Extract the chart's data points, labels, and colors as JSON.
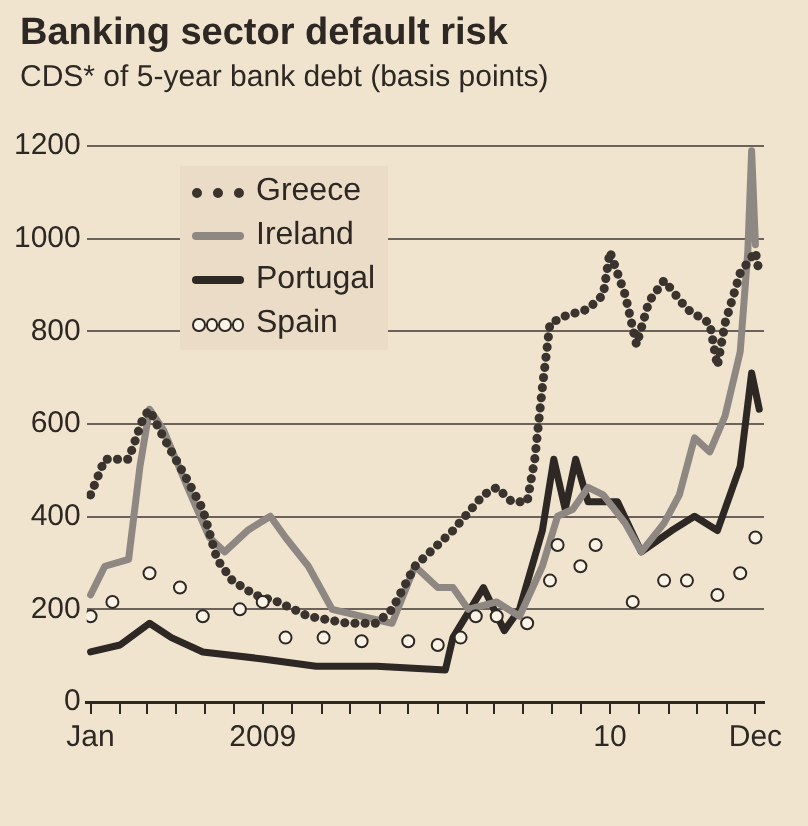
{
  "chart_data": {
    "type": "line",
    "title": "Banking sector default risk",
    "subtitle": "CDS* of 5-year bank debt (basis points)",
    "xlim": [
      "2008-12-28",
      "2010-12-10"
    ],
    "xticks": [
      {
        "value": "2009-01-01",
        "label": "Jan"
      },
      {
        "value": "2009-02-01",
        "label": null
      },
      {
        "value": "2009-03-01",
        "label": null
      },
      {
        "value": "2009-04-01",
        "label": null
      },
      {
        "value": "2009-05-01",
        "label": null
      },
      {
        "value": "2009-06-01",
        "label": null
      },
      {
        "value": "2009-07-01",
        "label": "2009"
      },
      {
        "value": "2009-08-01",
        "label": null
      },
      {
        "value": "2009-09-01",
        "label": null
      },
      {
        "value": "2009-10-01",
        "label": null
      },
      {
        "value": "2009-11-01",
        "label": null
      },
      {
        "value": "2009-12-01",
        "label": null
      },
      {
        "value": "2010-01-01",
        "label": null
      },
      {
        "value": "2010-02-01",
        "label": null
      },
      {
        "value": "2010-03-01",
        "label": null
      },
      {
        "value": "2010-04-01",
        "label": null
      },
      {
        "value": "2010-05-01",
        "label": null
      },
      {
        "value": "2010-06-01",
        "label": null
      },
      {
        "value": "2010-07-01",
        "label": "10"
      },
      {
        "value": "2010-08-01",
        "label": null
      },
      {
        "value": "2010-09-01",
        "label": null
      },
      {
        "value": "2010-10-01",
        "label": null
      },
      {
        "value": "2010-11-01",
        "label": null
      },
      {
        "value": "2010-12-01",
        "label": "Dec"
      }
    ],
    "ylim": [
      0,
      1200
    ],
    "yticks": [
      0,
      200,
      400,
      600,
      800,
      1000,
      1200
    ],
    "grid": "y",
    "legend": "top left",
    "series": [
      {
        "name": "Greece",
        "color": "#3a332e",
        "line_style": "dotted",
        "x": [
          "2009-01-01",
          "2009-01-16",
          "2009-02-10",
          "2009-02-26",
          "2009-03-04",
          "2009-03-19",
          "2009-04-13",
          "2009-04-29",
          "2009-05-14",
          "2009-05-30",
          "2009-06-23",
          "2009-07-17",
          "2009-08-18",
          "2009-09-28",
          "2009-10-29",
          "2009-11-14",
          "2009-12-08",
          "2010-01-17",
          "2010-02-18",
          "2010-03-04",
          "2010-03-20",
          "2010-04-05",
          "2010-04-13",
          "2010-04-21",
          "2010-04-29",
          "2010-05-15",
          "2010-06-08",
          "2010-06-24",
          "2010-07-01",
          "2010-07-17",
          "2010-07-29",
          "2010-08-11",
          "2010-08-27",
          "2010-09-20",
          "2010-10-14",
          "2010-10-22",
          "2010-10-30",
          "2010-11-15",
          "2010-12-01",
          "2010-12-05"
        ],
        "values": [
          447,
          524,
          524,
          617,
          630,
          570,
          478,
          416,
          308,
          262,
          231,
          216,
          185,
          170,
          170,
          200,
          293,
          370,
          447,
          463,
          432,
          432,
          524,
          679,
          817,
          833,
          848,
          879,
          972,
          879,
          771,
          864,
          910,
          848,
          817,
          725,
          817,
          926,
          972,
          926
        ]
      },
      {
        "name": "Ireland",
        "color": "#8f8782",
        "line_style": "solid",
        "x": [
          "2009-01-01",
          "2009-01-16",
          "2009-02-10",
          "2009-02-22",
          "2009-03-04",
          "2009-03-19",
          "2009-04-13",
          "2009-05-06",
          "2009-05-22",
          "2009-06-15",
          "2009-07-09",
          "2009-07-25",
          "2009-08-18",
          "2009-09-12",
          "2009-10-13",
          "2009-11-14",
          "2009-12-08",
          "2010-01-01",
          "2010-01-17",
          "2010-02-02",
          "2010-03-04",
          "2010-03-28",
          "2010-04-21",
          "2010-05-07",
          "2010-05-23",
          "2010-06-08",
          "2010-06-24",
          "2010-07-17",
          "2010-08-03",
          "2010-08-27",
          "2010-09-12",
          "2010-09-28",
          "2010-10-14",
          "2010-10-30",
          "2010-11-15",
          "2010-11-23",
          "2010-11-27",
          "2010-12-01"
        ],
        "values": [
          231,
          293,
          308,
          509,
          632,
          586,
          463,
          355,
          324,
          370,
          401,
          355,
          293,
          200,
          185,
          170,
          293,
          247,
          247,
          200,
          216,
          185,
          293,
          401,
          416,
          463,
          447,
          386,
          324,
          386,
          447,
          570,
          540,
          617,
          756,
          972,
          1190,
          987
        ]
      },
      {
        "name": "Portugal",
        "color": "#2e2824",
        "line_style": "solid",
        "x": [
          "2009-01-01",
          "2009-02-01",
          "2009-03-04",
          "2009-03-27",
          "2009-04-29",
          "2009-07-01",
          "2009-08-26",
          "2009-10-29",
          "2010-01-09",
          "2010-01-17",
          "2010-02-18",
          "2010-03-12",
          "2010-03-28",
          "2010-04-21",
          "2010-05-03",
          "2010-05-15",
          "2010-05-26",
          "2010-06-08",
          "2010-07-09",
          "2010-08-03",
          "2010-09-04",
          "2010-09-28",
          "2010-10-22",
          "2010-11-15",
          "2010-11-27",
          "2010-12-05"
        ],
        "values": [
          108,
          123,
          170,
          139,
          108,
          93,
          77,
          77,
          69,
          139,
          247,
          154,
          200,
          370,
          524,
          416,
          524,
          432,
          432,
          324,
          370,
          401,
          370,
          509,
          710,
          632
        ]
      },
      {
        "name": "Spain",
        "type": "scatter",
        "marker": "circle",
        "color": "#faf3e6",
        "x": [
          "2009-01-01",
          "2009-01-24",
          "2009-03-04",
          "2009-04-05",
          "2009-04-29",
          "2009-06-07",
          "2009-07-01",
          "2009-07-25",
          "2009-09-03",
          "2009-10-13",
          "2009-12-01",
          "2010-01-01",
          "2010-01-25",
          "2010-02-10",
          "2010-03-04",
          "2010-04-05",
          "2010-04-29",
          "2010-05-07",
          "2010-05-31",
          "2010-06-16",
          "2010-07-25",
          "2010-08-27",
          "2010-09-20",
          "2010-10-22",
          "2010-11-15",
          "2010-12-01"
        ],
        "values": [
          185,
          216,
          278,
          247,
          185,
          200,
          216,
          139,
          139,
          131,
          131,
          123,
          139,
          185,
          185,
          170,
          262,
          339,
          293,
          339,
          216,
          262,
          262,
          231,
          278,
          355
        ]
      }
    ]
  }
}
